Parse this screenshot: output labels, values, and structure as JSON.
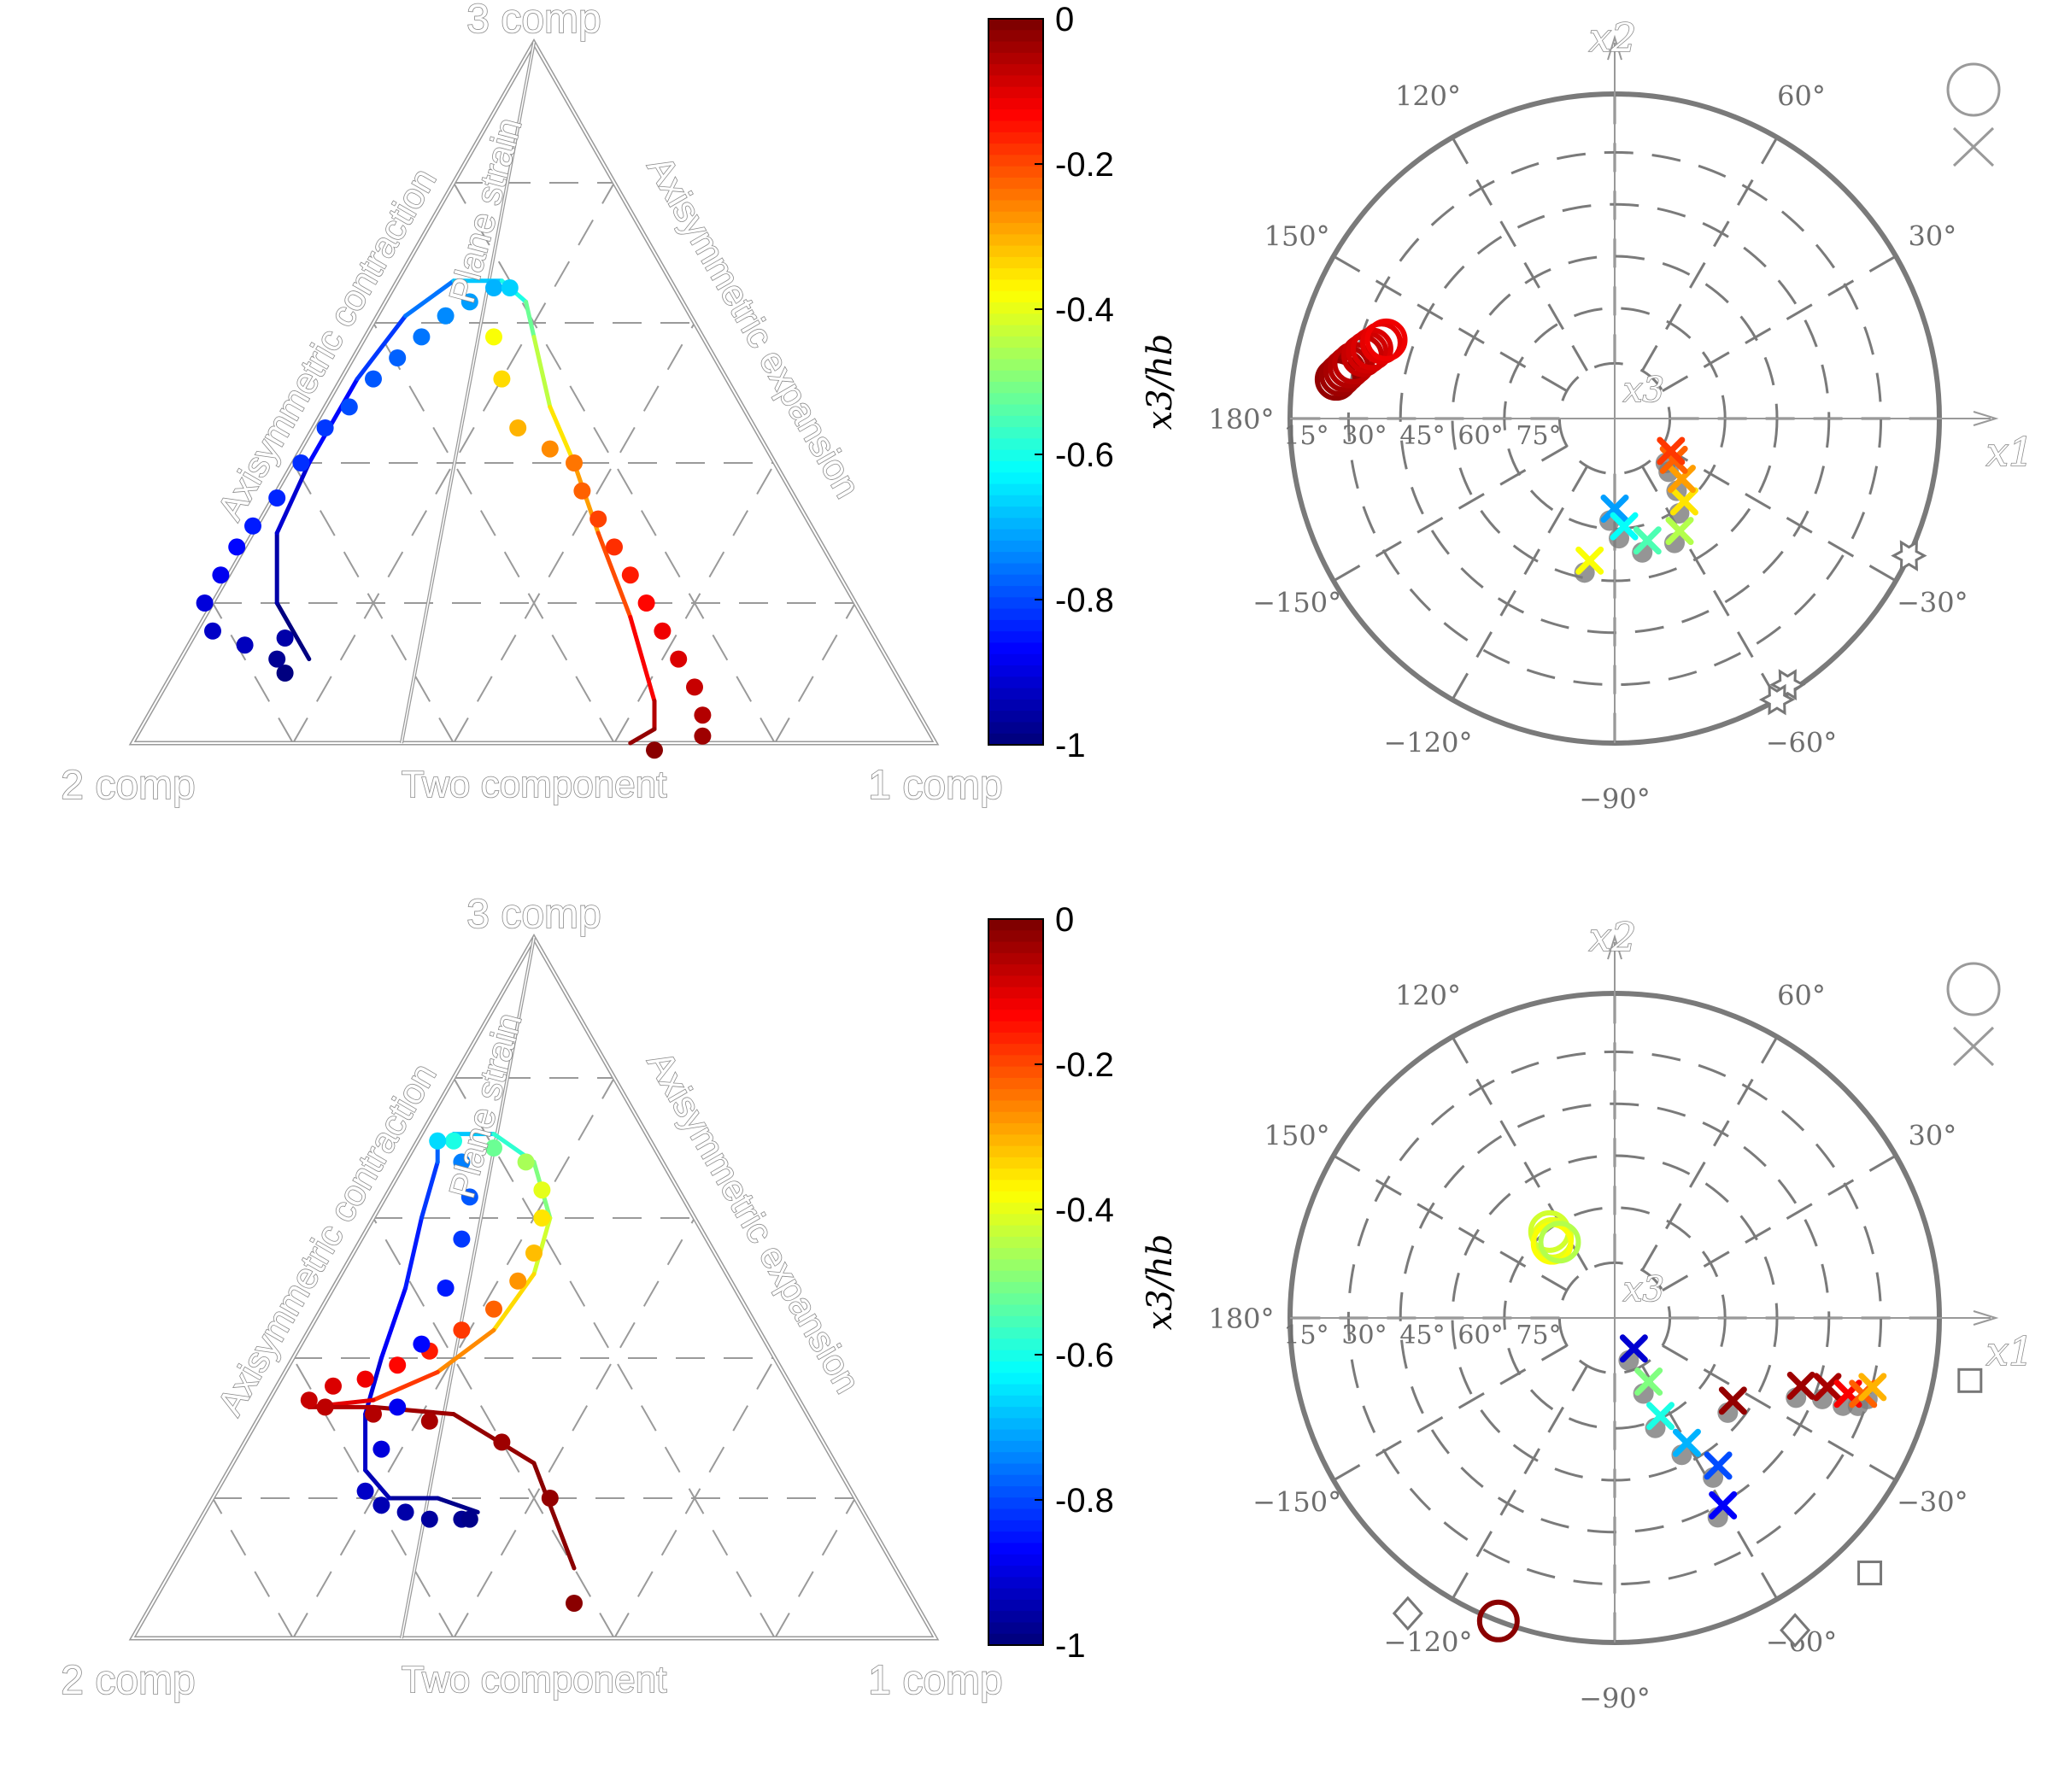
{
  "colors": {
    "colormap": "jet",
    "triangle_line": "#9a9a9a",
    "polar_line": "#7a7a7a",
    "marker_grey": "#7a7a7a",
    "colorbar_border": "#000000"
  },
  "icons": {
    "legend_circle": "circle-icon",
    "legend_cross": "cross-icon",
    "markers": [
      "circle-marker",
      "cross-marker",
      "diamond-marker",
      "square-marker",
      "hexagram-marker"
    ]
  },
  "chart_data": [
    {
      "type": "scatter",
      "subtype": "barycentric-triangle",
      "panel": "top-left",
      "vertex_labels": {
        "top": "3 comp",
        "left": "2 comp",
        "right": "1 comp"
      },
      "edge_labels": {
        "left": "Axisymmetric contraction",
        "right": "Axisymmetric expansion",
        "bottom": "Two component",
        "inner": "Plane strain"
      },
      "color_range": [
        -1,
        0
      ],
      "series": [
        {
          "style": "line",
          "points": [
            [
              0.22,
              0.12,
              -1.0
            ],
            [
              0.18,
              0.2,
              -0.96
            ],
            [
              0.18,
              0.3,
              -0.92
            ],
            [
              0.22,
              0.4,
              -0.87
            ],
            [
              0.28,
              0.52,
              -0.82
            ],
            [
              0.34,
              0.61,
              -0.76
            ],
            [
              0.4,
              0.66,
              -0.68
            ],
            [
              0.46,
              0.66,
              -0.6
            ],
            [
              0.49,
              0.63,
              -0.52
            ],
            [
              0.5,
              0.58,
              -0.44
            ],
            [
              0.52,
              0.48,
              -0.35
            ],
            [
              0.55,
              0.4,
              -0.28
            ],
            [
              0.58,
              0.3,
              -0.2
            ],
            [
              0.62,
              0.18,
              -0.12
            ],
            [
              0.65,
              0.06,
              -0.05
            ],
            [
              0.65,
              0.02,
              -0.02
            ],
            [
              0.62,
              0.0,
              0.0
            ]
          ]
        },
        {
          "style": "markers",
          "points": [
            [
              0.19,
              0.1,
              -1.0
            ],
            [
              0.18,
              0.12,
              -0.98
            ],
            [
              0.19,
              0.15,
              -0.96
            ],
            [
              0.14,
              0.14,
              -0.94
            ],
            [
              0.1,
              0.16,
              -0.93
            ],
            [
              0.09,
              0.2,
              -0.91
            ],
            [
              0.11,
              0.24,
              -0.89
            ],
            [
              0.13,
              0.28,
              -0.87
            ],
            [
              0.15,
              0.31,
              -0.85
            ],
            [
              0.18,
              0.35,
              -0.84
            ],
            [
              0.21,
              0.4,
              -0.83
            ],
            [
              0.24,
              0.45,
              -0.82
            ],
            [
              0.27,
              0.48,
              -0.8
            ],
            [
              0.3,
              0.52,
              -0.79
            ],
            [
              0.33,
              0.55,
              -0.78
            ],
            [
              0.36,
              0.58,
              -0.76
            ],
            [
              0.39,
              0.61,
              -0.74
            ],
            [
              0.42,
              0.63,
              -0.72
            ],
            [
              0.45,
              0.65,
              -0.7
            ],
            [
              0.47,
              0.65,
              -0.67
            ],
            [
              0.45,
              0.58,
              -0.38
            ],
            [
              0.46,
              0.52,
              -0.34
            ],
            [
              0.48,
              0.45,
              -0.3
            ],
            [
              0.52,
              0.42,
              -0.26
            ],
            [
              0.55,
              0.4,
              -0.24
            ],
            [
              0.56,
              0.36,
              -0.22
            ],
            [
              0.58,
              0.32,
              -0.19
            ],
            [
              0.6,
              0.28,
              -0.17
            ],
            [
              0.62,
              0.24,
              -0.15
            ],
            [
              0.64,
              0.2,
              -0.13
            ],
            [
              0.66,
              0.16,
              -0.11
            ],
            [
              0.68,
              0.12,
              -0.09
            ],
            [
              0.7,
              0.08,
              -0.07
            ],
            [
              0.71,
              0.04,
              -0.05
            ],
            [
              0.71,
              0.01,
              -0.03
            ],
            [
              0.65,
              -0.01,
              -0.01
            ]
          ]
        }
      ]
    },
    {
      "type": "scatter",
      "subtype": "polar",
      "panel": "top-right",
      "angle_labels": [
        "120°",
        "60°",
        "150°",
        "30°",
        "180°",
        "−150°",
        "−30°",
        "−120°",
        "−60°",
        "−90°"
      ],
      "ring_labels": [
        "15°",
        "30°",
        "45°",
        "60°",
        "75°"
      ],
      "axis_labels": {
        "x1": "x1",
        "x2": "x2",
        "x3": "x3"
      },
      "color_range": [
        -1,
        0
      ],
      "circles": [
        [
          172,
          78,
          -0.02
        ],
        [
          171,
          77,
          -0.03
        ],
        [
          170,
          76,
          -0.04
        ],
        [
          169,
          75,
          -0.05
        ],
        [
          168,
          74,
          -0.06
        ],
        [
          166,
          72,
          -0.07
        ],
        [
          165,
          71,
          -0.08
        ],
        [
          164,
          70,
          -0.09
        ],
        [
          162,
          68,
          -0.1
        ],
        [
          161,
          67,
          -0.11
        ]
      ],
      "crosses": [
        [
          260,
          40,
          -0.38
        ],
        [
          270,
          25,
          -0.72
        ],
        [
          275,
          30,
          -0.62
        ],
        [
          285,
          35,
          -0.55
        ],
        [
          300,
          36,
          -0.45
        ],
        [
          310,
          30,
          -0.35
        ],
        [
          318,
          25,
          -0.28
        ],
        [
          325,
          20,
          -0.22
        ],
        [
          330,
          18,
          -0.18
        ]
      ],
      "grey_markers": [
        {
          "shape": "hexagram",
          "angle": -25,
          "radius": 90
        },
        {
          "shape": "hexagram",
          "angle": -57,
          "radius": 88
        },
        {
          "shape": "hexagram",
          "angle": -60,
          "radius": 90
        }
      ]
    },
    {
      "type": "scatter",
      "subtype": "barycentric-triangle",
      "panel": "bottom-left",
      "vertex_labels": {
        "top": "3 comp",
        "left": "2 comp",
        "right": "1 comp"
      },
      "edge_labels": {
        "left": "Axisymmetric contraction",
        "right": "Axisymmetric expansion",
        "bottom": "Two component",
        "inner": "Plane strain"
      },
      "color_range": [
        -1,
        0
      ],
      "series": [
        {
          "style": "line",
          "points": [
            [
              0.43,
              0.18,
              -0.99
            ],
            [
              0.38,
              0.2,
              -0.97
            ],
            [
              0.32,
              0.2,
              -0.95
            ],
            [
              0.29,
              0.24,
              -0.93
            ],
            [
              0.29,
              0.32,
              -0.91
            ],
            [
              0.31,
              0.4,
              -0.88
            ],
            [
              0.34,
              0.5,
              -0.85
            ],
            [
              0.36,
              0.6,
              -0.82
            ],
            [
              0.38,
              0.68,
              -0.78
            ],
            [
              0.38,
              0.7,
              -0.75
            ],
            [
              0.4,
              0.72,
              -0.68
            ],
            [
              0.45,
              0.72,
              -0.58
            ],
            [
              0.5,
              0.68,
              -0.5
            ],
            [
              0.52,
              0.6,
              -0.42
            ],
            [
              0.5,
              0.52,
              -0.34
            ],
            [
              0.45,
              0.44,
              -0.26
            ],
            [
              0.38,
              0.38,
              -0.18
            ],
            [
              0.3,
              0.34,
              -0.1
            ],
            [
              0.22,
              0.33,
              -0.05
            ],
            [
              0.3,
              0.33,
              -0.03
            ],
            [
              0.4,
              0.32,
              -0.02
            ],
            [
              0.5,
              0.25,
              -0.01
            ],
            [
              0.55,
              0.1,
              0.0
            ]
          ]
        },
        {
          "style": "markers",
          "points": [
            [
              0.55,
              0.05,
              -0.01
            ],
            [
              0.52,
              0.2,
              -0.02
            ],
            [
              0.46,
              0.28,
              -0.03
            ],
            [
              0.37,
              0.31,
              -0.04
            ],
            [
              0.3,
              0.32,
              -0.05
            ],
            [
              0.24,
              0.33,
              -0.06
            ],
            [
              0.22,
              0.34,
              -0.07
            ],
            [
              0.25,
              0.36,
              -0.09
            ],
            [
              0.29,
              0.37,
              -0.11
            ],
            [
              0.33,
              0.39,
              -0.13
            ],
            [
              0.37,
              0.41,
              -0.15
            ],
            [
              0.41,
              0.44,
              -0.18
            ],
            [
              0.45,
              0.47,
              -0.22
            ],
            [
              0.48,
              0.51,
              -0.27
            ],
            [
              0.5,
              0.55,
              -0.31
            ],
            [
              0.51,
              0.6,
              -0.35
            ],
            [
              0.51,
              0.64,
              -0.4
            ],
            [
              0.49,
              0.68,
              -0.46
            ],
            [
              0.45,
              0.7,
              -0.52
            ],
            [
              0.4,
              0.71,
              -0.6
            ],
            [
              0.38,
              0.71,
              -0.66
            ],
            [
              0.41,
              0.68,
              -0.75
            ],
            [
              0.42,
              0.63,
              -0.79
            ],
            [
              0.41,
              0.57,
              -0.82
            ],
            [
              0.39,
              0.5,
              -0.85
            ],
            [
              0.36,
              0.42,
              -0.87
            ],
            [
              0.33,
              0.33,
              -0.89
            ],
            [
              0.31,
              0.27,
              -0.91
            ],
            [
              0.29,
              0.21,
              -0.93
            ],
            [
              0.31,
              0.19,
              -0.95
            ],
            [
              0.34,
              0.18,
              -0.96
            ],
            [
              0.37,
              0.17,
              -0.97
            ],
            [
              0.41,
              0.17,
              -0.98
            ],
            [
              0.42,
              0.17,
              -0.99
            ]
          ]
        }
      ]
    },
    {
      "type": "scatter",
      "subtype": "polar",
      "panel": "bottom-right",
      "angle_labels": [
        "120°",
        "60°",
        "150°",
        "30°",
        "180°",
        "−150°",
        "−30°",
        "−120°",
        "−60°",
        "−90°"
      ],
      "ring_labels": [
        "15°",
        "30°",
        "45°",
        "60°",
        "75°"
      ],
      "axis_labels": {
        "x1": "x1",
        "x2": "x2",
        "x3": "x3"
      },
      "color_range": [
        -1,
        0
      ],
      "circles": [
        [
          128,
          28,
          -0.4
        ],
        [
          127,
          30,
          -0.42
        ],
        [
          130,
          27,
          -0.38
        ],
        [
          126,
          26,
          -0.45
        ],
        [
          -111,
          90,
          -0.01
        ]
      ],
      "crosses": [
        [
          -60,
          60,
          -0.88
        ],
        [
          -55,
          50,
          -0.8
        ],
        [
          -60,
          40,
          -0.7
        ],
        [
          -65,
          30,
          -0.6
        ],
        [
          -62,
          20,
          -0.5
        ],
        [
          -58,
          10,
          -0.92
        ],
        [
          -35,
          40,
          -0.02
        ],
        [
          -20,
          55,
          -0.03
        ],
        [
          -18,
          62,
          -0.04
        ],
        [
          -18,
          68,
          -0.12
        ],
        [
          -17,
          72,
          -0.22
        ],
        [
          -15,
          74,
          -0.3
        ]
      ],
      "grey_markers": [
        {
          "shape": "square",
          "angle": -10,
          "radius": 100
        },
        {
          "shape": "square",
          "angle": -45,
          "radius": 100
        },
        {
          "shape": "diamond",
          "angle": -60,
          "radius": 100
        },
        {
          "shape": "diamond",
          "angle": -125,
          "radius": 100
        }
      ]
    }
  ],
  "colorbars": [
    {
      "label": "x3/hb",
      "ticks": [
        "0",
        "-0.2",
        "-0.4",
        "-0.6",
        "-0.8",
        "-1"
      ]
    },
    {
      "label": "x3/hb",
      "ticks": [
        "0",
        "-0.2",
        "-0.4",
        "-0.6",
        "-0.8",
        "-1"
      ]
    }
  ]
}
